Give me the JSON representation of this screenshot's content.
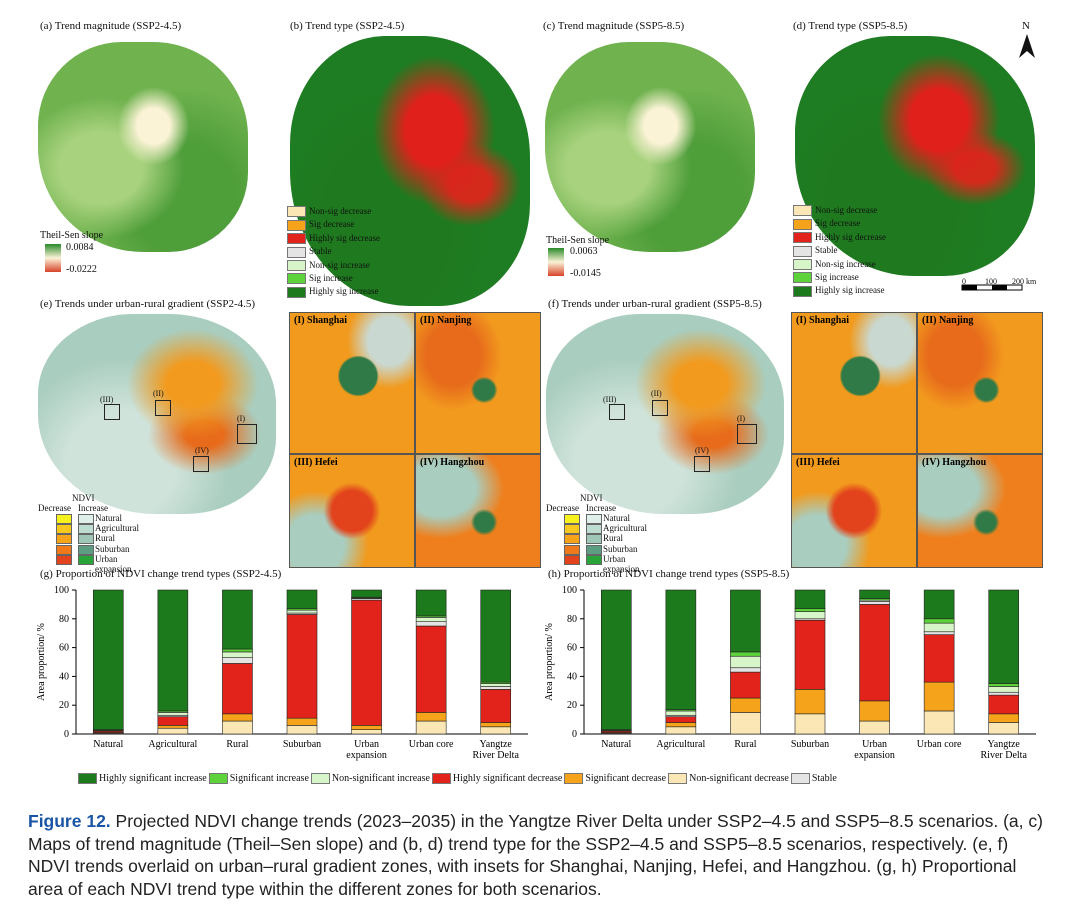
{
  "panels": {
    "a": "(a) Trend magnitude (SSP2-4.5)",
    "b": "(b) Trend type (SSP2-4.5)",
    "c": "(c) Trend magnitude (SSP5-8.5)",
    "d": "(d) Trend type (SSP5-8.5)",
    "e": "(e) Trends under urban-rural gradient (SSP2-4.5)",
    "f": "(f) Trends under urban-rural gradient (SSP5-8.5)",
    "g": "(g)  Proportion of NDVI change trend types (SSP2-4.5)",
    "h": "(h)  Proportion of NDVI change trend types (SSP5-8.5)"
  },
  "north_arrow": "N",
  "scale_bar": {
    "labels": [
      "0",
      "100",
      "200 km"
    ]
  },
  "slope_legend_a": {
    "title": "Theil-Sen slope",
    "max": "0.0084",
    "min": "-0.0222"
  },
  "slope_legend_c": {
    "title": "Theil-Sen slope",
    "max": "0.0063",
    "min": "-0.0145"
  },
  "type_legend": {
    "items": [
      {
        "label": "Non-sig decrease",
        "color": "#fbe7b5"
      },
      {
        "label": "Sig decrease",
        "color": "#f6a31c"
      },
      {
        "label": "Highly sig decrease",
        "color": "#e1231b"
      },
      {
        "label": "Stable",
        "color": "#e4e4e4"
      },
      {
        "label": "Non-sig increase",
        "color": "#d8f5c9"
      },
      {
        "label": "Sig increase",
        "color": "#5dd23a"
      },
      {
        "label": "Highly sig increase",
        "color": "#1c7a1c"
      }
    ]
  },
  "insets": {
    "e": [
      "(I) Shanghai",
      "(II) Nanjing",
      "(III) Hefei",
      "(IV) Hangzhou"
    ],
    "f": [
      "(I) Shanghai",
      "(II) Nanjing",
      "(III) Hefei",
      "(IV) Hangzhou"
    ]
  },
  "map_markers": [
    "(I)",
    "(II)",
    "(III)",
    "(IV)"
  ],
  "zone_legend": {
    "title": "NDVI",
    "decrease": "Decrease",
    "increase": "Increase",
    "zones": [
      "Natural",
      "Agricultural",
      "Rural",
      "Suburban",
      "Urban expansion"
    ],
    "decrease_colors": [
      "#f7f21e",
      "#f7c91e",
      "#f6a31c",
      "#ef7a1c",
      "#e2421c"
    ],
    "increase_colors": [
      "#dff0ea",
      "#bfdcd1",
      "#9ec7b7",
      "#5d9e82",
      "#2aa33a"
    ]
  },
  "bar_chart": {
    "ylabel": "Area proportion/ %",
    "yticks": [
      "0",
      "20",
      "40",
      "60",
      "80",
      "100"
    ]
  },
  "chart_data": [
    {
      "type": "bar",
      "stacked": true,
      "title": "(g)  Proportion of NDVI change trend types (SSP2-4.5)",
      "ylabel": "Area proportion/ %",
      "ylim": [
        0,
        100
      ],
      "categories": [
        "Natural",
        "Agricultural",
        "Rural",
        "Suburban",
        "Urban expansion",
        "Urban core",
        "Yangtze River Delta"
      ],
      "series": [
        {
          "name": "Non-significant decrease",
          "color": "#fbe7b5",
          "values": [
            0.5,
            4,
            9,
            6,
            3,
            9,
            5
          ]
        },
        {
          "name": "Significant decrease",
          "color": "#f6a31c",
          "values": [
            0.5,
            2,
            5,
            5,
            3,
            6,
            3
          ]
        },
        {
          "name": "Highly significant decrease",
          "color": "#e1231b",
          "values": [
            1,
            6,
            35,
            72,
            87,
            60,
            23
          ]
        },
        {
          "name": "Stable",
          "color": "#e4e4e4",
          "values": [
            0.2,
            1,
            4,
            1,
            1,
            3,
            2
          ]
        },
        {
          "name": "Non-significant increase",
          "color": "#d8f5c9",
          "values": [
            0.3,
            2,
            4,
            2,
            0.5,
            3,
            2
          ]
        },
        {
          "name": "Significant increase",
          "color": "#5dd23a",
          "values": [
            0.5,
            1,
            2,
            1,
            0.5,
            1,
            1
          ]
        },
        {
          "name": "Highly significant increase",
          "color": "#1c7a1c",
          "values": [
            97,
            84,
            41,
            13,
            5,
            18,
            64
          ]
        }
      ]
    },
    {
      "type": "bar",
      "stacked": true,
      "title": "(h)  Proportion of NDVI change trend types (SSP5-8.5)",
      "ylabel": "Area proportion/ %",
      "ylim": [
        0,
        100
      ],
      "categories": [
        "Natural",
        "Agricultural",
        "Rural",
        "Suburban",
        "Urban expansion",
        "Urban core",
        "Yangtze River Delta"
      ],
      "series": [
        {
          "name": "Non-significant decrease",
          "color": "#fbe7b5",
          "values": [
            0.5,
            5,
            15,
            14,
            9,
            16,
            8
          ]
        },
        {
          "name": "Significant decrease",
          "color": "#f6a31c",
          "values": [
            0.5,
            3,
            10,
            17,
            14,
            20,
            6
          ]
        },
        {
          "name": "Highly significant decrease",
          "color": "#e1231b",
          "values": [
            1,
            4,
            18,
            48,
            67,
            33,
            13
          ]
        },
        {
          "name": "Stable",
          "color": "#e4e4e4",
          "values": [
            0.2,
            1,
            3,
            1,
            2,
            2,
            2
          ]
        },
        {
          "name": "Non-significant increase",
          "color": "#d8f5c9",
          "values": [
            0.3,
            3,
            8,
            5,
            1,
            6,
            4
          ]
        },
        {
          "name": "Significant increase",
          "color": "#5dd23a",
          "values": [
            0.5,
            1,
            3,
            2,
            1,
            3,
            2
          ]
        },
        {
          "name": "Highly significant increase",
          "color": "#1c7a1c",
          "values": [
            97,
            83,
            43,
            13,
            6,
            20,
            65
          ]
        }
      ]
    }
  ],
  "bottom_legend": [
    {
      "label": "Highly significant increase",
      "color": "#1c7a1c"
    },
    {
      "label": "Significant increase",
      "color": "#5dd23a"
    },
    {
      "label": "Non-significant increase",
      "color": "#d8f5c9"
    },
    {
      "label": "Highly significant decrease",
      "color": "#e1231b"
    },
    {
      "label": "Significant decrease",
      "color": "#f6a31c"
    },
    {
      "label": "Non-significant decrease",
      "color": "#fbe7b5"
    },
    {
      "label": "Stable",
      "color": "#e4e4e4"
    }
  ],
  "caption": {
    "label": "Figure 12.",
    "text": " Projected NDVI change trends (2023–2035) in the Yangtze River Delta under SSP2–4.5 and SSP5–8.5 scenarios. (a, c) Maps of trend magnitude (Theil–Sen slope) and (b, d) trend type for the SSP2–4.5 and SSP5–8.5 scenarios, respectively. (e, f) NDVI trends overlaid on urban–rural gradient zones, with insets for Shanghai, Nanjing, Hefei, and Hangzhou. (g, h) Proportional area of each NDVI trend type within the different zones for both scenarios."
  }
}
